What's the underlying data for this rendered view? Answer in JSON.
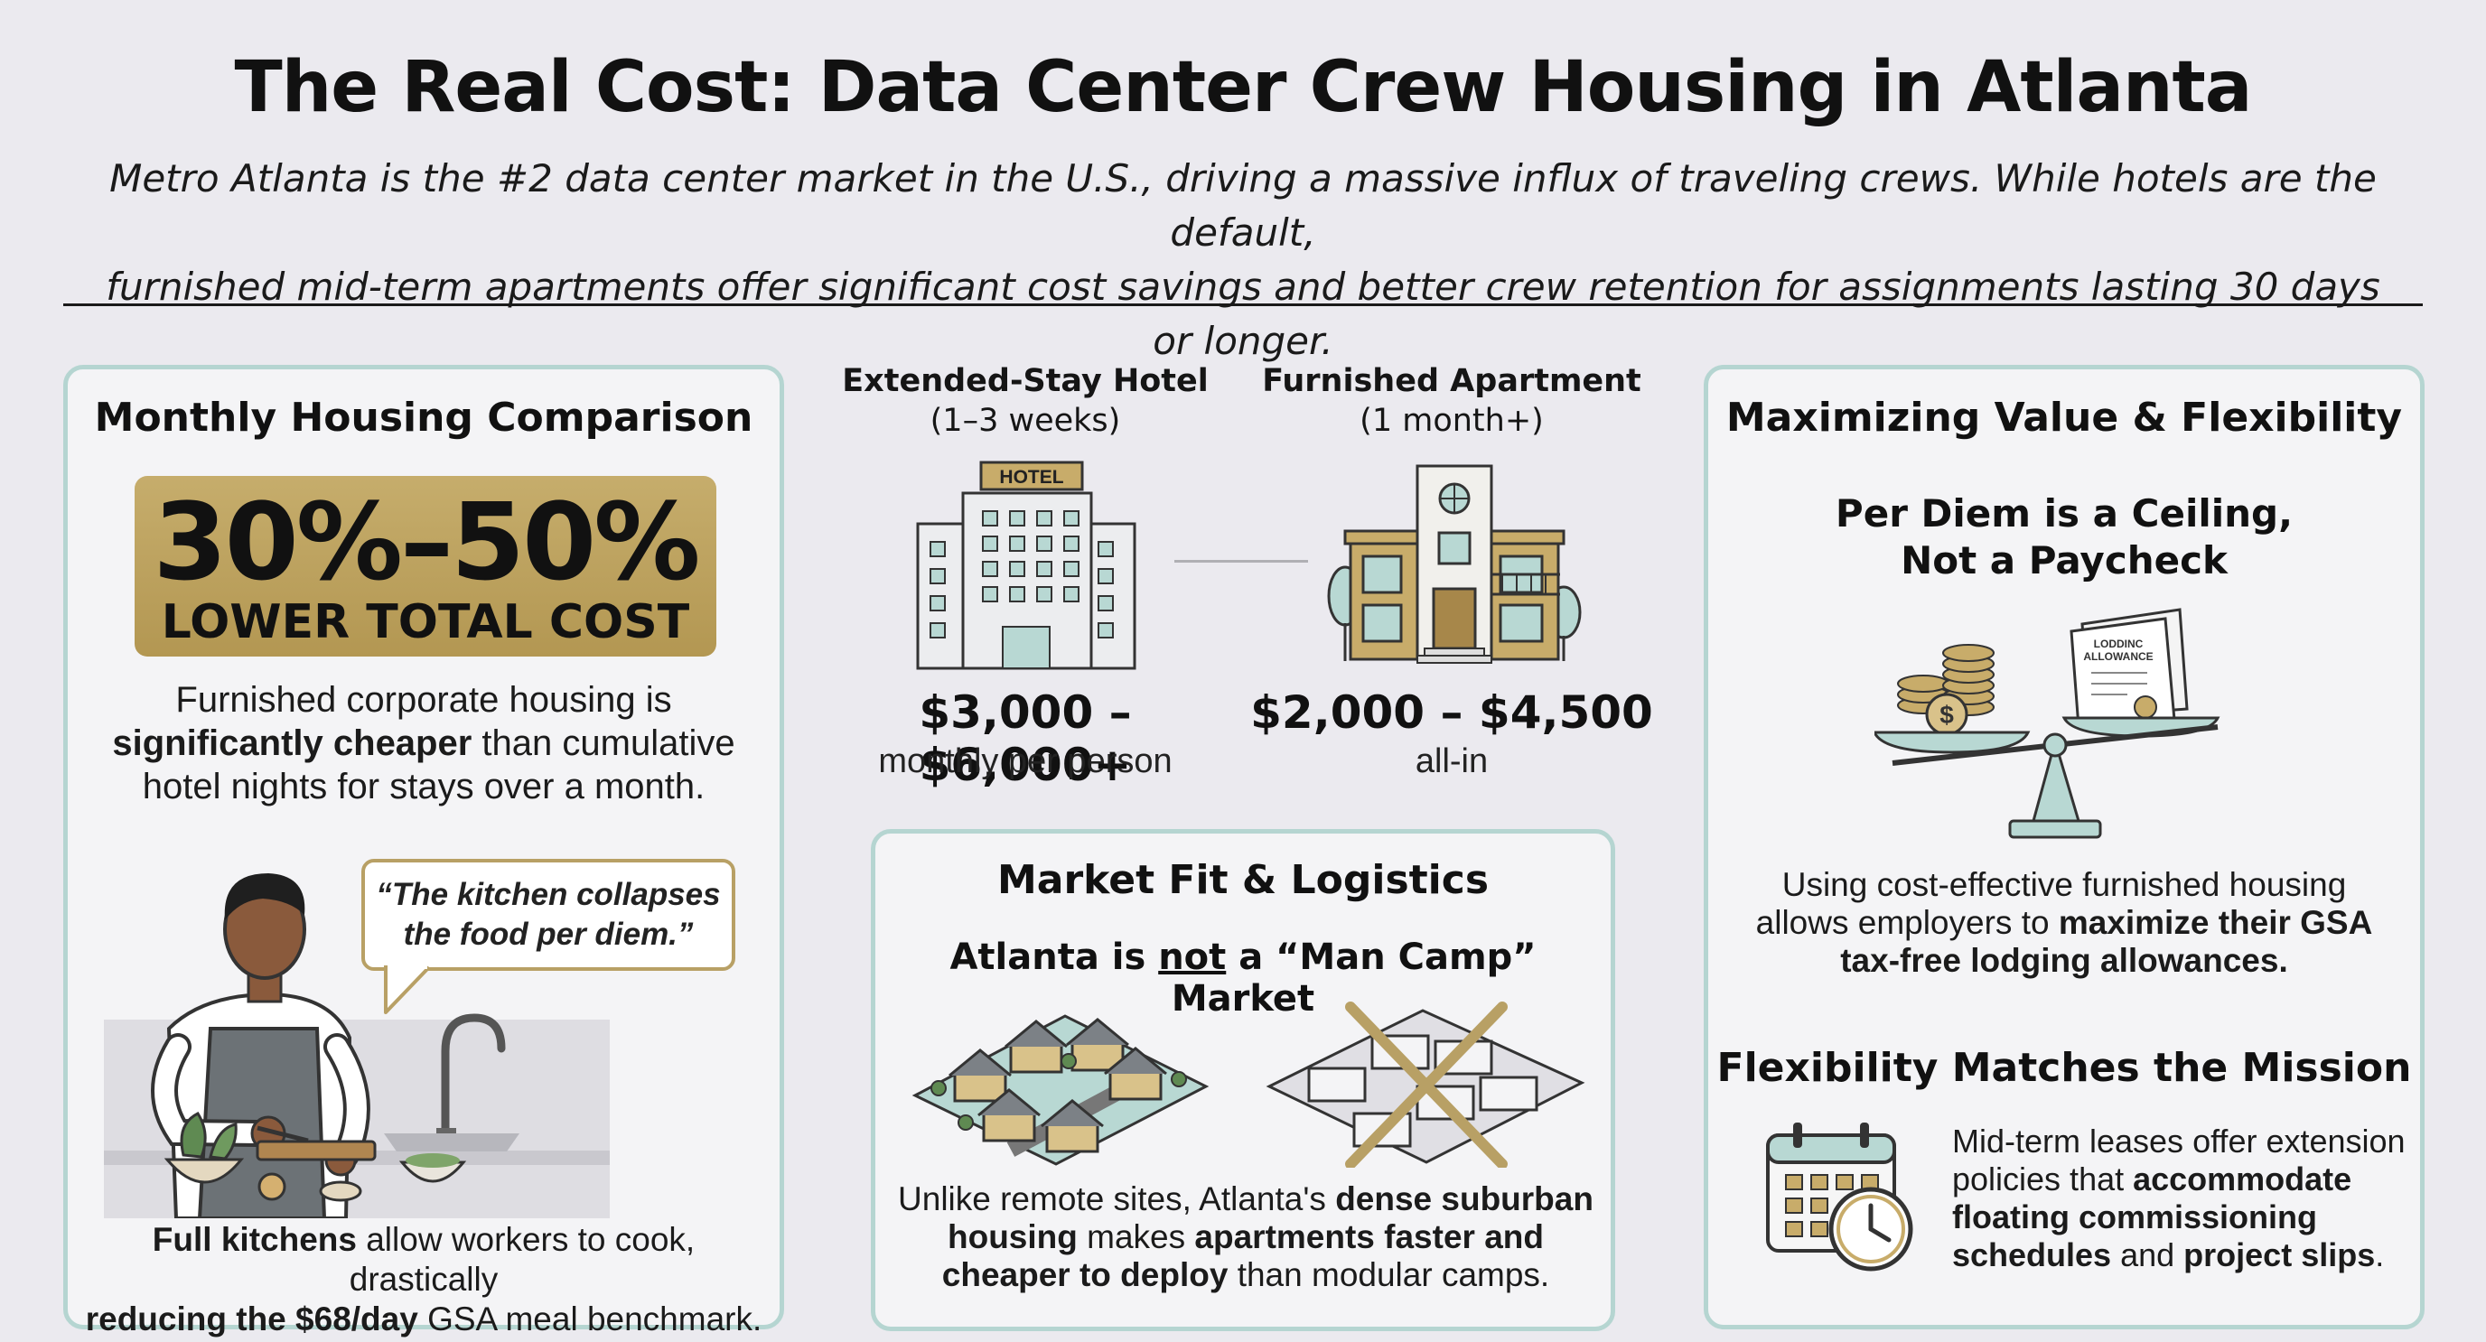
{
  "header": {
    "title": "The Real Cost: Data Center Crew Housing in Atlanta",
    "subtitle_line1": "Metro Atlanta is the #2 data center market in the U.S., driving a massive influx of traveling crews. While hotels are the default,",
    "subtitle_line2": "furnished mid-term apartments offer significant cost savings and better crew retention for assignments lasting 30 days or longer."
  },
  "left_panel": {
    "title": "Monthly Housing Comparison",
    "highlight_value": "30%–50%",
    "highlight_label": "LOWER TOTAL COST",
    "desc_line1": "Furnished corporate housing is",
    "desc_bold": "significantly cheaper",
    "desc_line2_rest": " than cumulative",
    "desc_line3": "hotel nights for stays over a month.",
    "quote_line1": "“The kitchen collapses",
    "quote_line2": "the food per diem.”",
    "footer_bold1": "Full kitchens",
    "footer_rest1": " allow workers to cook, drastically",
    "footer_bold2": "reducing the $68/day",
    "footer_rest2": " GSA meal benchmark."
  },
  "comparison": {
    "hotel": {
      "label": "Extended-Stay Hotel",
      "duration": "(1–3 weeks)",
      "sign": "HOTEL",
      "price": "$3,000 – $6,000+",
      "price_note": "monthly per person"
    },
    "apartment": {
      "label": "Furnished Apartment",
      "duration": "(1 month+)",
      "price": "$2,000 – $4,500",
      "price_note": "all-in"
    }
  },
  "market_panel": {
    "title": "Market Fit & Logistics",
    "subtitle_pre": "Atlanta is ",
    "subtitle_not": "not",
    "subtitle_post": " a “Man Camp” Market",
    "line1_pre": "Unlike remote sites, Atlanta's ",
    "line1_bold": "dense suburban",
    "line2_bold1": "housing",
    "line2_mid": " makes ",
    "line2_bold2": "apartments faster and",
    "line3_bold": "cheaper to deploy",
    "line3_rest": " than modular camps."
  },
  "right_panel": {
    "title": "Maximizing Value & Flexibility",
    "perdiem_line1": "Per Diem is a Ceiling,",
    "perdiem_line2": "Not a Paycheck",
    "doc_line1": "LODDINC",
    "doc_line2": "ALLOWANCE",
    "gsa_line1": "Using cost-effective furnished housing",
    "gsa_line2_pre": "allows employers to ",
    "gsa_line2_bold": "maximize their GSA",
    "gsa_line3_bold": "tax-free lodging allowances.",
    "flex_title": "Flexibility Matches the Mission",
    "flex_line1": "Mid-term leases offer extension",
    "flex_line2_pre": "policies that ",
    "flex_line2_bold": "accommodate",
    "flex_line3_bold": "floating commissioning",
    "flex_line4_bold": "schedules",
    "flex_line4_mid": " and ",
    "flex_line4_bold2": "project slips",
    "flex_line4_end": "."
  },
  "colors": {
    "accent_gold": "#b8a065",
    "accent_teal": "#b5d5d1",
    "background": "#ebeaef"
  }
}
